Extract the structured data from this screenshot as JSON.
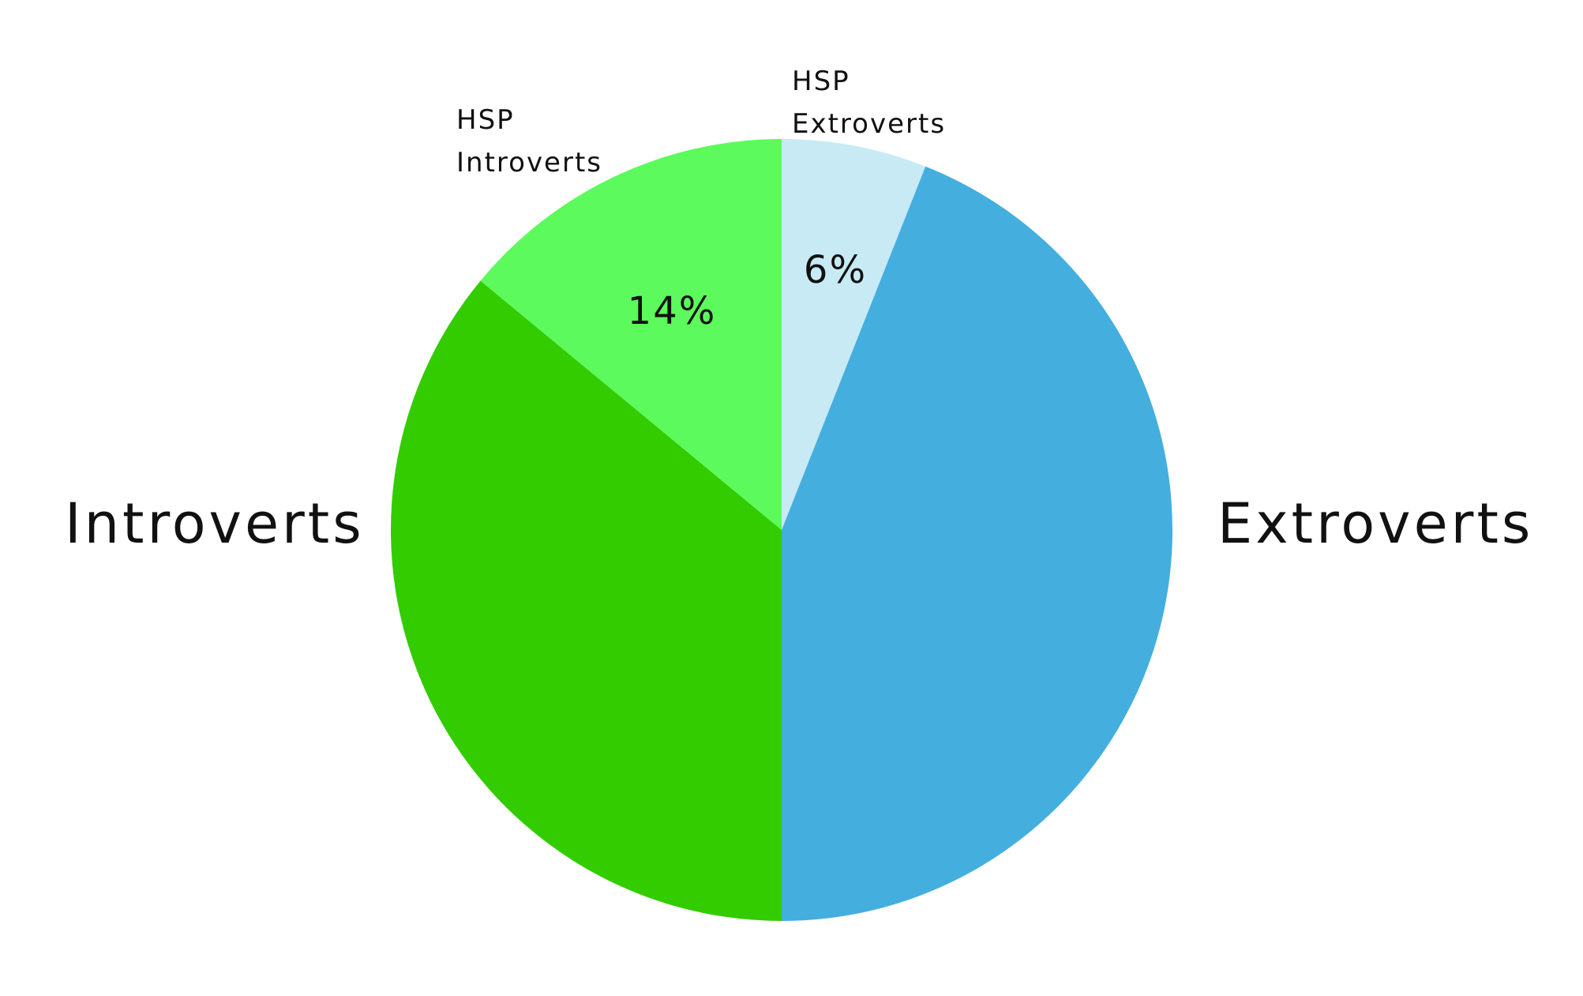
{
  "chart_data": {
    "type": "pie",
    "categories": [
      "HSP Extroverts",
      "Extroverts",
      "Introverts",
      "HSP Introverts"
    ],
    "values": [
      6,
      44,
      36,
      14
    ],
    "value_labels": [
      "6%",
      null,
      null,
      "14%"
    ],
    "colors": [
      "#c8eaf5",
      "#44aedf",
      "#33cc00",
      "#5cfa5c"
    ],
    "start_angle": 0,
    "direction": "clockwise"
  }
}
